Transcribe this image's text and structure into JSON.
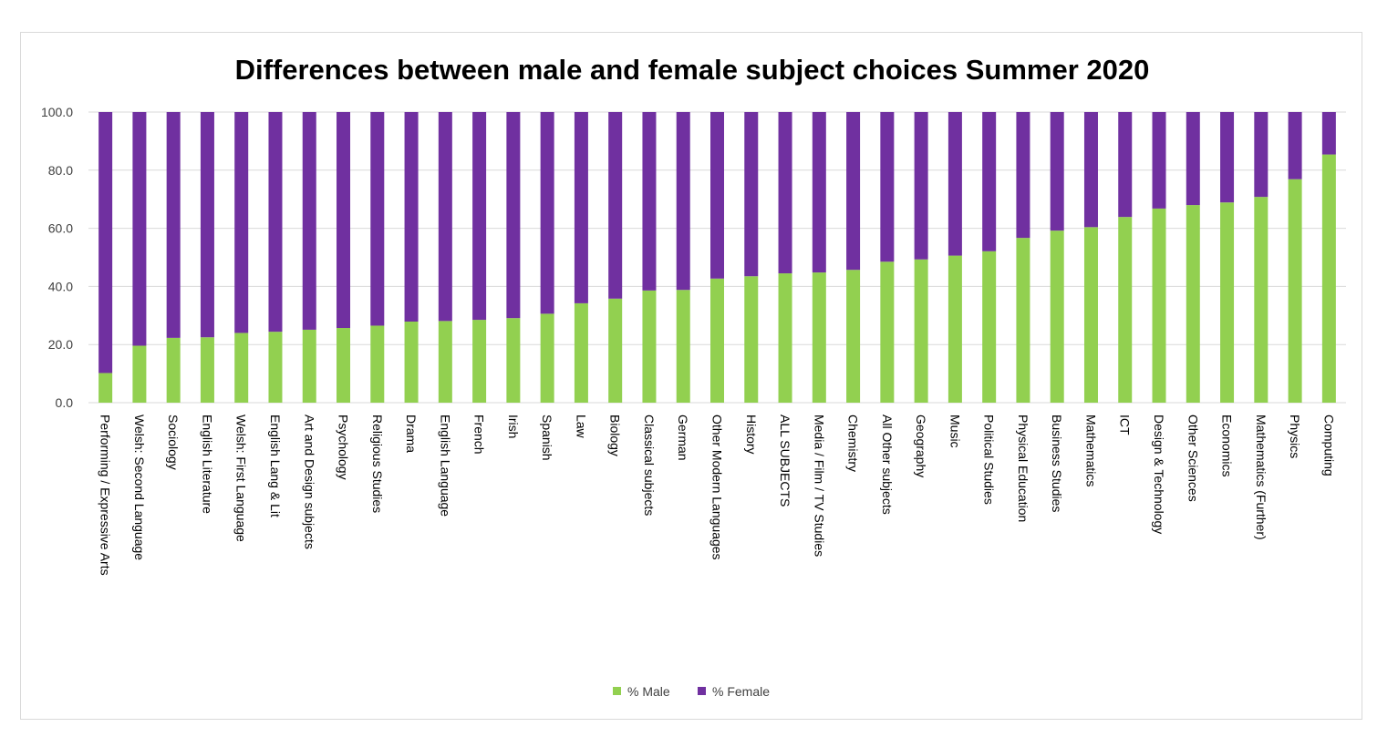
{
  "chart_data": {
    "type": "bar",
    "stacked": true,
    "title": "Differences between male and female subject choices Summer 2020",
    "xlabel": "",
    "ylabel": "",
    "ylim": [
      0,
      100
    ],
    "yticks": [
      "0.0",
      "20.0",
      "40.0",
      "60.0",
      "80.0",
      "100.0"
    ],
    "grid": true,
    "legend": "bottom",
    "categories": [
      "Performing / Expressive Arts",
      "Welsh: Second Language",
      "Sociology",
      "English Literature",
      "Welsh: First Language",
      "English Lang & Lit",
      "Art and Design subjects",
      "Psychology",
      "Religious Studies",
      "Drama",
      "English Language",
      "French",
      "Irish",
      "Spanish",
      "Law",
      "Biology",
      "Classical subjects",
      "German",
      "Other Modern Languages",
      "History",
      "ALL SUBJECTS",
      "Media / Film / TV Studies",
      "Chemistry",
      "All Other subjects",
      "Geography",
      "Music",
      "Political Studies",
      "Physical Education",
      "Business Studies",
      "Mathematics",
      "ICT",
      "Design & Technology",
      "Other Sciences",
      "Economics",
      "Mathematics (Further)",
      "Physics",
      "Computing"
    ],
    "series": [
      {
        "name": "% Male",
        "color": "#92d050",
        "values": [
          10.2,
          19.6,
          22.3,
          22.5,
          24.0,
          24.4,
          25.1,
          25.7,
          26.5,
          27.9,
          28.1,
          28.5,
          29.1,
          30.6,
          34.2,
          35.8,
          38.6,
          38.8,
          42.7,
          43.5,
          44.5,
          44.8,
          45.7,
          48.5,
          49.3,
          50.6,
          52.1,
          56.7,
          59.2,
          60.4,
          63.9,
          66.8,
          68.0,
          68.9,
          70.8,
          76.9,
          85.4
        ]
      },
      {
        "name": "% Female",
        "color": "#7030a0",
        "values": [
          89.8,
          80.4,
          77.7,
          77.5,
          76.0,
          75.6,
          74.9,
          74.3,
          73.5,
          72.1,
          71.9,
          71.5,
          70.9,
          69.4,
          65.8,
          64.2,
          61.4,
          61.2,
          57.3,
          56.5,
          55.5,
          55.2,
          54.3,
          51.5,
          50.7,
          49.4,
          47.9,
          43.3,
          40.8,
          39.6,
          36.1,
          33.2,
          32.0,
          31.1,
          29.2,
          23.1,
          14.6
        ]
      }
    ]
  }
}
